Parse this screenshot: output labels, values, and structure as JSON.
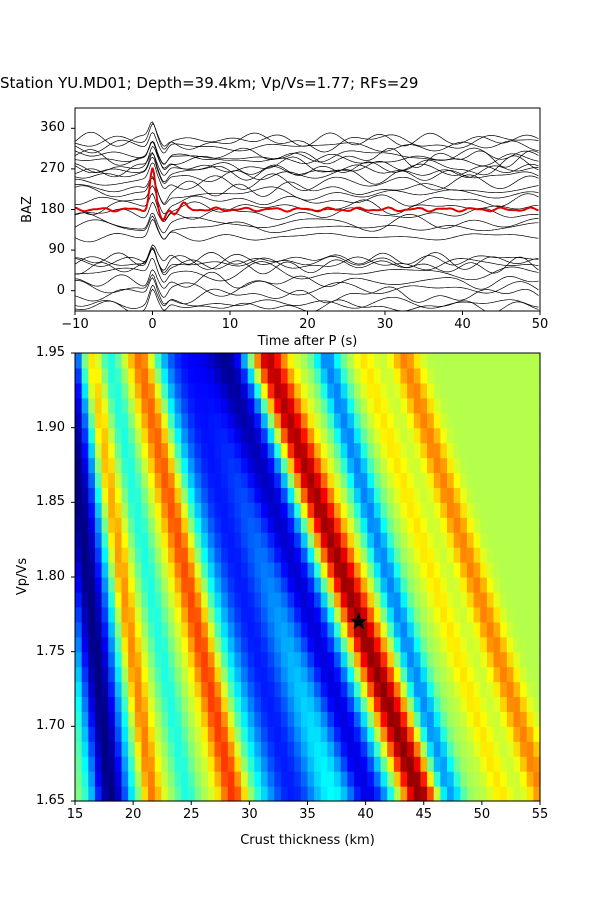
{
  "chart_data": [
    {
      "type": "line",
      "title": "Station YU.MD01; Depth=39.4km; Vp/Vs=1.77; RFs=29",
      "xlabel": "Time after P (s)",
      "ylabel": "BAZ",
      "xlim": [
        -10,
        50
      ],
      "ylim": [
        -45,
        405
      ],
      "xticks": [
        -10,
        0,
        10,
        20,
        30,
        40,
        50
      ],
      "yticks": [
        0,
        90,
        180,
        270,
        360
      ],
      "trace_count": 29,
      "trace_color": "#000000",
      "stack_color": "#e00000",
      "baz_offsets": [
        -35,
        -28,
        -10,
        5,
        20,
        40,
        55,
        60,
        65,
        70,
        120,
        140,
        150,
        170,
        185,
        200,
        215,
        225,
        240,
        255,
        265,
        270,
        275,
        290,
        295,
        300,
        320,
        330,
        335
      ]
    },
    {
      "type": "heatmap",
      "xlabel": "Crust thickness (km)",
      "ylabel": "Vp/Vs",
      "xlim": [
        15,
        55
      ],
      "ylim": [
        1.65,
        1.95
      ],
      "xticks": [
        15,
        20,
        25,
        30,
        35,
        40,
        45,
        50,
        55
      ],
      "yticks": [
        1.65,
        1.7,
        1.75,
        1.8,
        1.85,
        1.9,
        1.95
      ],
      "colormap": "jet",
      "best_fit": {
        "thickness_km": 39.4,
        "vp_vs": 1.77,
        "marker": "star"
      }
    }
  ]
}
